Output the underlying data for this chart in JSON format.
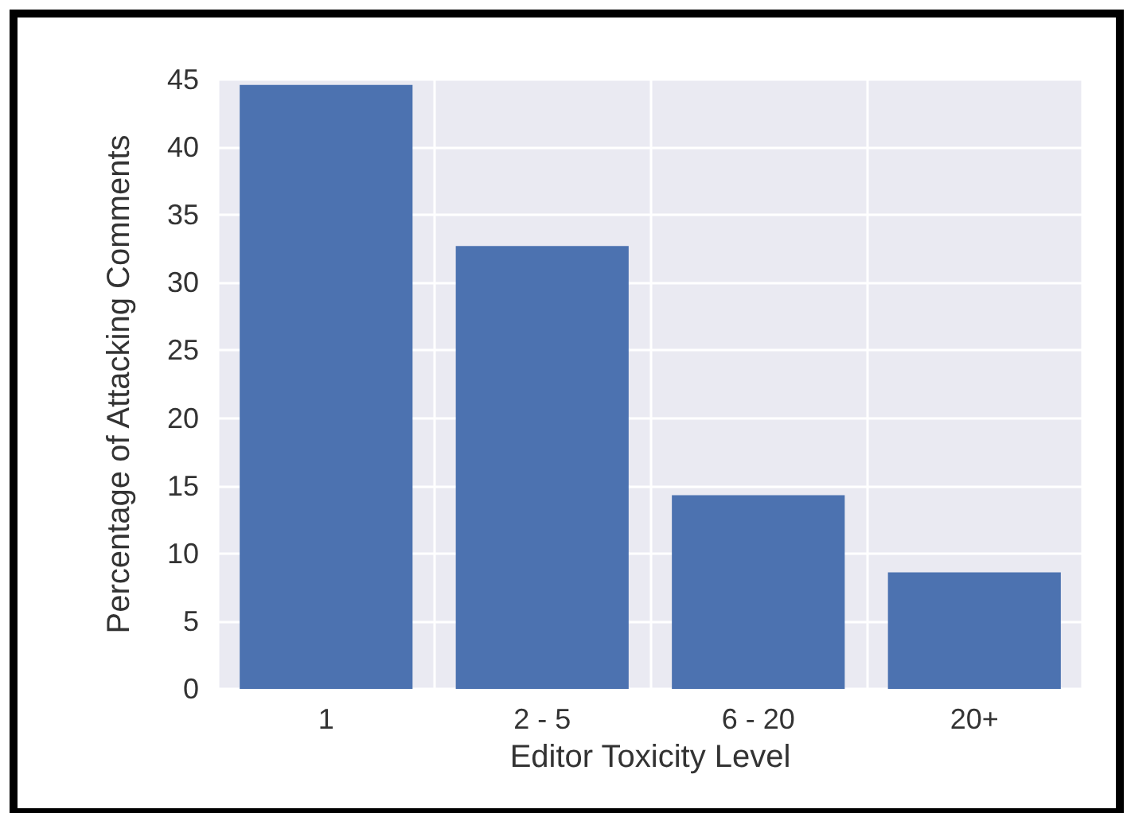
{
  "chart_data": {
    "type": "bar",
    "xlabel": "Editor Toxicity Level",
    "ylabel": "Percentage of Attacking Comments",
    "categories": [
      "1",
      "2 - 5",
      "6 - 20",
      "20+"
    ],
    "values": [
      44.6,
      32.7,
      14.3,
      8.6
    ],
    "color": "#4c72b0",
    "ylim": [
      0,
      45
    ],
    "yticks": [
      0,
      5,
      10,
      15,
      20,
      25,
      30,
      35,
      40,
      45
    ],
    "grid": true
  }
}
